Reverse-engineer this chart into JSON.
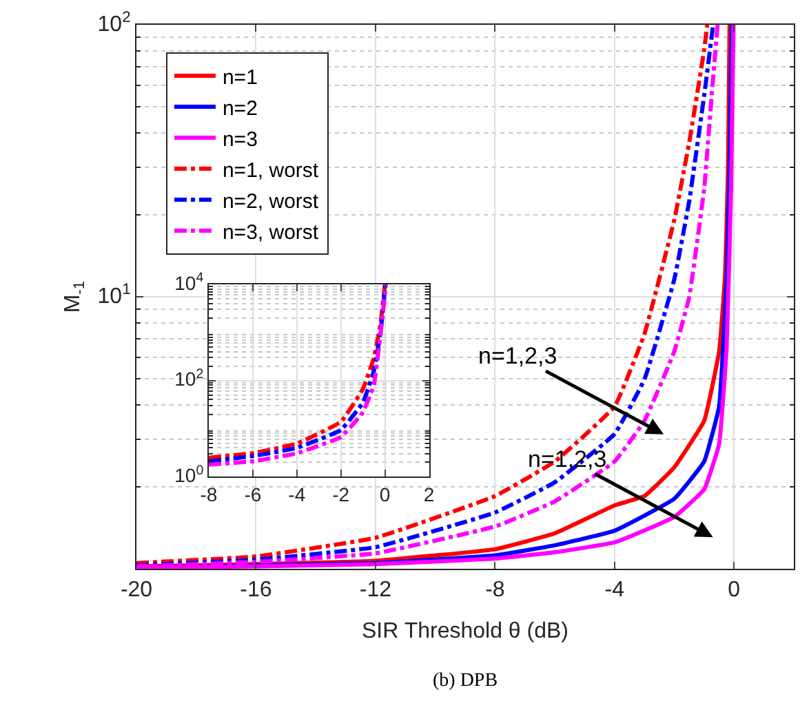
{
  "chart_data": [
    {
      "type": "line",
      "xlabel": "SIR Threshold θ (dB)",
      "ylabel": "M$_{-1}$",
      "log": "y",
      "grid": true,
      "legend": "top left",
      "xlim": [
        -20,
        2
      ],
      "xticks": [
        -20,
        -16,
        -12,
        -8,
        -4,
        0
      ],
      "ylim": [
        1,
        100
      ],
      "yticks": [
        {
          "value": 10,
          "label": "10$^{1}$"
        },
        {
          "value": 100,
          "label": "10$^{2}$"
        }
      ],
      "annotations": [
        "n=1,2,3",
        "n=1,2,3",
        "(b) DPB"
      ],
      "series": [
        {
          "name": "n=1",
          "color": "#ff0000",
          "line_style": "solid",
          "x": [
            -20,
            -16,
            -12,
            -8,
            -6,
            -4,
            -3,
            -2,
            -1,
            -0.5,
            -0.3,
            -0.2,
            -0.15
          ],
          "values": [
            1.02,
            1.04,
            1.07,
            1.18,
            1.35,
            1.71,
            1.85,
            2.36,
            3.5,
            6.3,
            12,
            30,
            100
          ]
        },
        {
          "name": "n=2",
          "color": "#0000ff",
          "line_style": "solid",
          "x": [
            -20,
            -16,
            -12,
            -8,
            -6,
            -4,
            -2,
            -1,
            -0.5,
            -0.25,
            -0.15,
            -0.08
          ],
          "values": [
            1.01,
            1.03,
            1.05,
            1.12,
            1.22,
            1.38,
            1.81,
            2.48,
            3.95,
            11.6,
            30,
            100
          ]
        },
        {
          "name": "n=3",
          "color": "#ff00ff",
          "line_style": "solid",
          "x": [
            -20,
            -16,
            -12,
            -8,
            -6,
            -4,
            -2,
            -1,
            -0.5,
            -0.25,
            -0.1,
            -0.02
          ],
          "values": [
            1.01,
            1.02,
            1.04,
            1.09,
            1.15,
            1.25,
            1.55,
            1.96,
            2.88,
            6.5,
            25,
            100
          ]
        },
        {
          "name": "n=1, worst",
          "color": "#ff0000",
          "line_style": "dashed",
          "x": [
            -20,
            -16,
            -12,
            -8,
            -6,
            -4,
            -3,
            -2,
            -1.5,
            -1,
            -0.9
          ],
          "values": [
            1.05,
            1.11,
            1.3,
            1.85,
            2.48,
            3.95,
            7.3,
            19.2,
            37,
            81,
            100
          ]
        },
        {
          "name": "n=2, worst",
          "color": "#0000ff",
          "line_style": "dashed",
          "x": [
            -20,
            -16,
            -12,
            -8,
            -6,
            -4,
            -3,
            -2,
            -1.5,
            -1,
            -0.7
          ],
          "values": [
            1.03,
            1.08,
            1.2,
            1.61,
            2.08,
            3.13,
            4.97,
            11.6,
            22.5,
            55,
            100
          ]
        },
        {
          "name": "n=3, worst",
          "color": "#ff00ff",
          "line_style": "dashed",
          "x": [
            -20,
            -16,
            -12,
            -8,
            -6,
            -4,
            -3,
            -2,
            -1.5,
            -1,
            -0.75,
            -0.55
          ],
          "values": [
            1.02,
            1.06,
            1.14,
            1.43,
            1.77,
            2.48,
            3.5,
            6.3,
            10,
            25,
            55,
            100
          ]
        }
      ]
    },
    {
      "type": "line",
      "log": "y",
      "grid": true,
      "xlim": [
        -8,
        2
      ],
      "xticks": [
        -8,
        -6,
        -4,
        -2,
        0,
        2
      ],
      "ylim": [
        1,
        10000
      ],
      "yticks": [
        {
          "value": 1,
          "label": "10$^{0}$"
        },
        {
          "value": 100,
          "label": "10$^{2}$"
        },
        {
          "value": 10000,
          "label": "10$^{4}$"
        }
      ],
      "series": [
        {
          "color": "#ff0000",
          "line_style": "dashed",
          "x": [
            -8,
            -6,
            -4,
            -2,
            -1,
            -0.5,
            -0.2,
            0
          ],
          "values": [
            2.5,
            3.1,
            4.9,
            13.9,
            67,
            300,
            1500,
            10000
          ]
        },
        {
          "color": "#0000ff",
          "line_style": "dashed",
          "x": [
            -8,
            -6,
            -4,
            -2,
            -1,
            -0.5,
            -0.2,
            0.02
          ],
          "values": [
            2.1,
            2.7,
            4,
            9.4,
            35,
            160,
            1000,
            10000
          ]
        },
        {
          "color": "#ff00ff",
          "line_style": "dashed",
          "x": [
            -8,
            -6,
            -4,
            -2,
            -1,
            -0.5,
            -0.2,
            0.05
          ],
          "values": [
            1.8,
            2.1,
            3.1,
            6.7,
            22,
            82,
            930,
            10000
          ]
        }
      ]
    }
  ]
}
